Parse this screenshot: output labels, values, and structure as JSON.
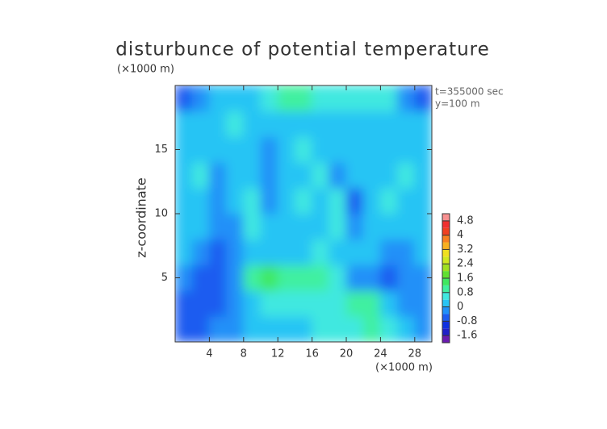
{
  "chart_data": {
    "type": "heatmap",
    "title": "disturbunce of potential temperature",
    "y_unit": "(×1000 m)",
    "x_unit": "(×1000 m)",
    "y_label": "z-coordinate",
    "annotations": [
      "t=355000 sec",
      "y=100 m"
    ],
    "x": [
      1,
      3,
      5,
      7,
      9,
      11,
      13,
      15,
      17,
      19,
      21,
      23,
      25,
      27,
      29
    ],
    "y": [
      1,
      3,
      5,
      7,
      9,
      11,
      13,
      15,
      17,
      19
    ],
    "values": [
      [
        -0.6,
        -0.8,
        -0.4,
        -0.2,
        0.2,
        0.2,
        0.2,
        0.3,
        0.4,
        0.4,
        0.6,
        0.8,
        0.4,
        0,
        -0.4
      ],
      [
        -0.6,
        -0.8,
        -0.6,
        -0.4,
        0.2,
        0.4,
        0.4,
        0.6,
        0.4,
        0.6,
        1.0,
        0.8,
        0.2,
        -0.2,
        -0.4
      ],
      [
        -0.4,
        -0.8,
        -0.6,
        -0.4,
        1.0,
        1.2,
        1.0,
        1.0,
        1.0,
        0.4,
        -0.2,
        -0.4,
        -0.6,
        -0.4,
        -0.4
      ],
      [
        0,
        -0.4,
        -0.6,
        -0.2,
        0,
        0.2,
        0.2,
        0.2,
        0.4,
        0,
        0.2,
        0,
        -0.2,
        -0.2,
        0
      ],
      [
        0.2,
        0,
        -0.4,
        -0.2,
        0.4,
        0.2,
        0,
        0.2,
        0.2,
        0.4,
        -0.4,
        0.2,
        0.2,
        0,
        0.2
      ],
      [
        0.2,
        0.2,
        -0.4,
        0.2,
        0.4,
        -0.4,
        0.2,
        0.4,
        0.2,
        0.4,
        -0.6,
        0.2,
        0.4,
        0.2,
        0.2
      ],
      [
        0.2,
        0.4,
        -0.4,
        0,
        0.2,
        -0.4,
        0.2,
        0.2,
        0.4,
        -0.2,
        0.2,
        0.2,
        0.2,
        0.4,
        0.2
      ],
      [
        0.2,
        0.2,
        0,
        0.2,
        0.2,
        -0.2,
        0,
        0.4,
        0.2,
        0.2,
        0.2,
        0.2,
        0.2,
        0,
        0.2
      ],
      [
        0,
        0.2,
        0.2,
        0.4,
        0.2,
        0,
        0.2,
        0,
        0.2,
        0.2,
        0.2,
        0.2,
        0,
        0.2,
        0
      ],
      [
        -0.8,
        -0.4,
        0,
        0.2,
        0.2,
        0.4,
        1.0,
        1.0,
        0.6,
        0.4,
        0.4,
        0.6,
        0.4,
        -0.4,
        -0.8
      ]
    ],
    "xlim": [
      0,
      30
    ],
    "ylim": [
      0,
      20
    ],
    "xticks": [
      4,
      8,
      12,
      16,
      20,
      24,
      28
    ],
    "yticks": [
      5,
      10,
      15
    ],
    "clim": [
      -2,
      5.2
    ],
    "colors": [
      "#6a1bb0",
      "#2020c8",
      "#1030e0",
      "#1c5cf0",
      "#2090f8",
      "#28c4f4",
      "#40e8e0",
      "#40f0a0",
      "#40e860",
      "#60e030",
      "#a0e020",
      "#d0e820",
      "#f0e020",
      "#f8b020",
      "#f88020",
      "#f04020",
      "#f03030",
      "#f89090"
    ],
    "cticks": [
      -1.6,
      -0.8,
      0,
      0.8,
      1.6,
      2.4,
      3.2,
      4,
      4.8
    ]
  }
}
